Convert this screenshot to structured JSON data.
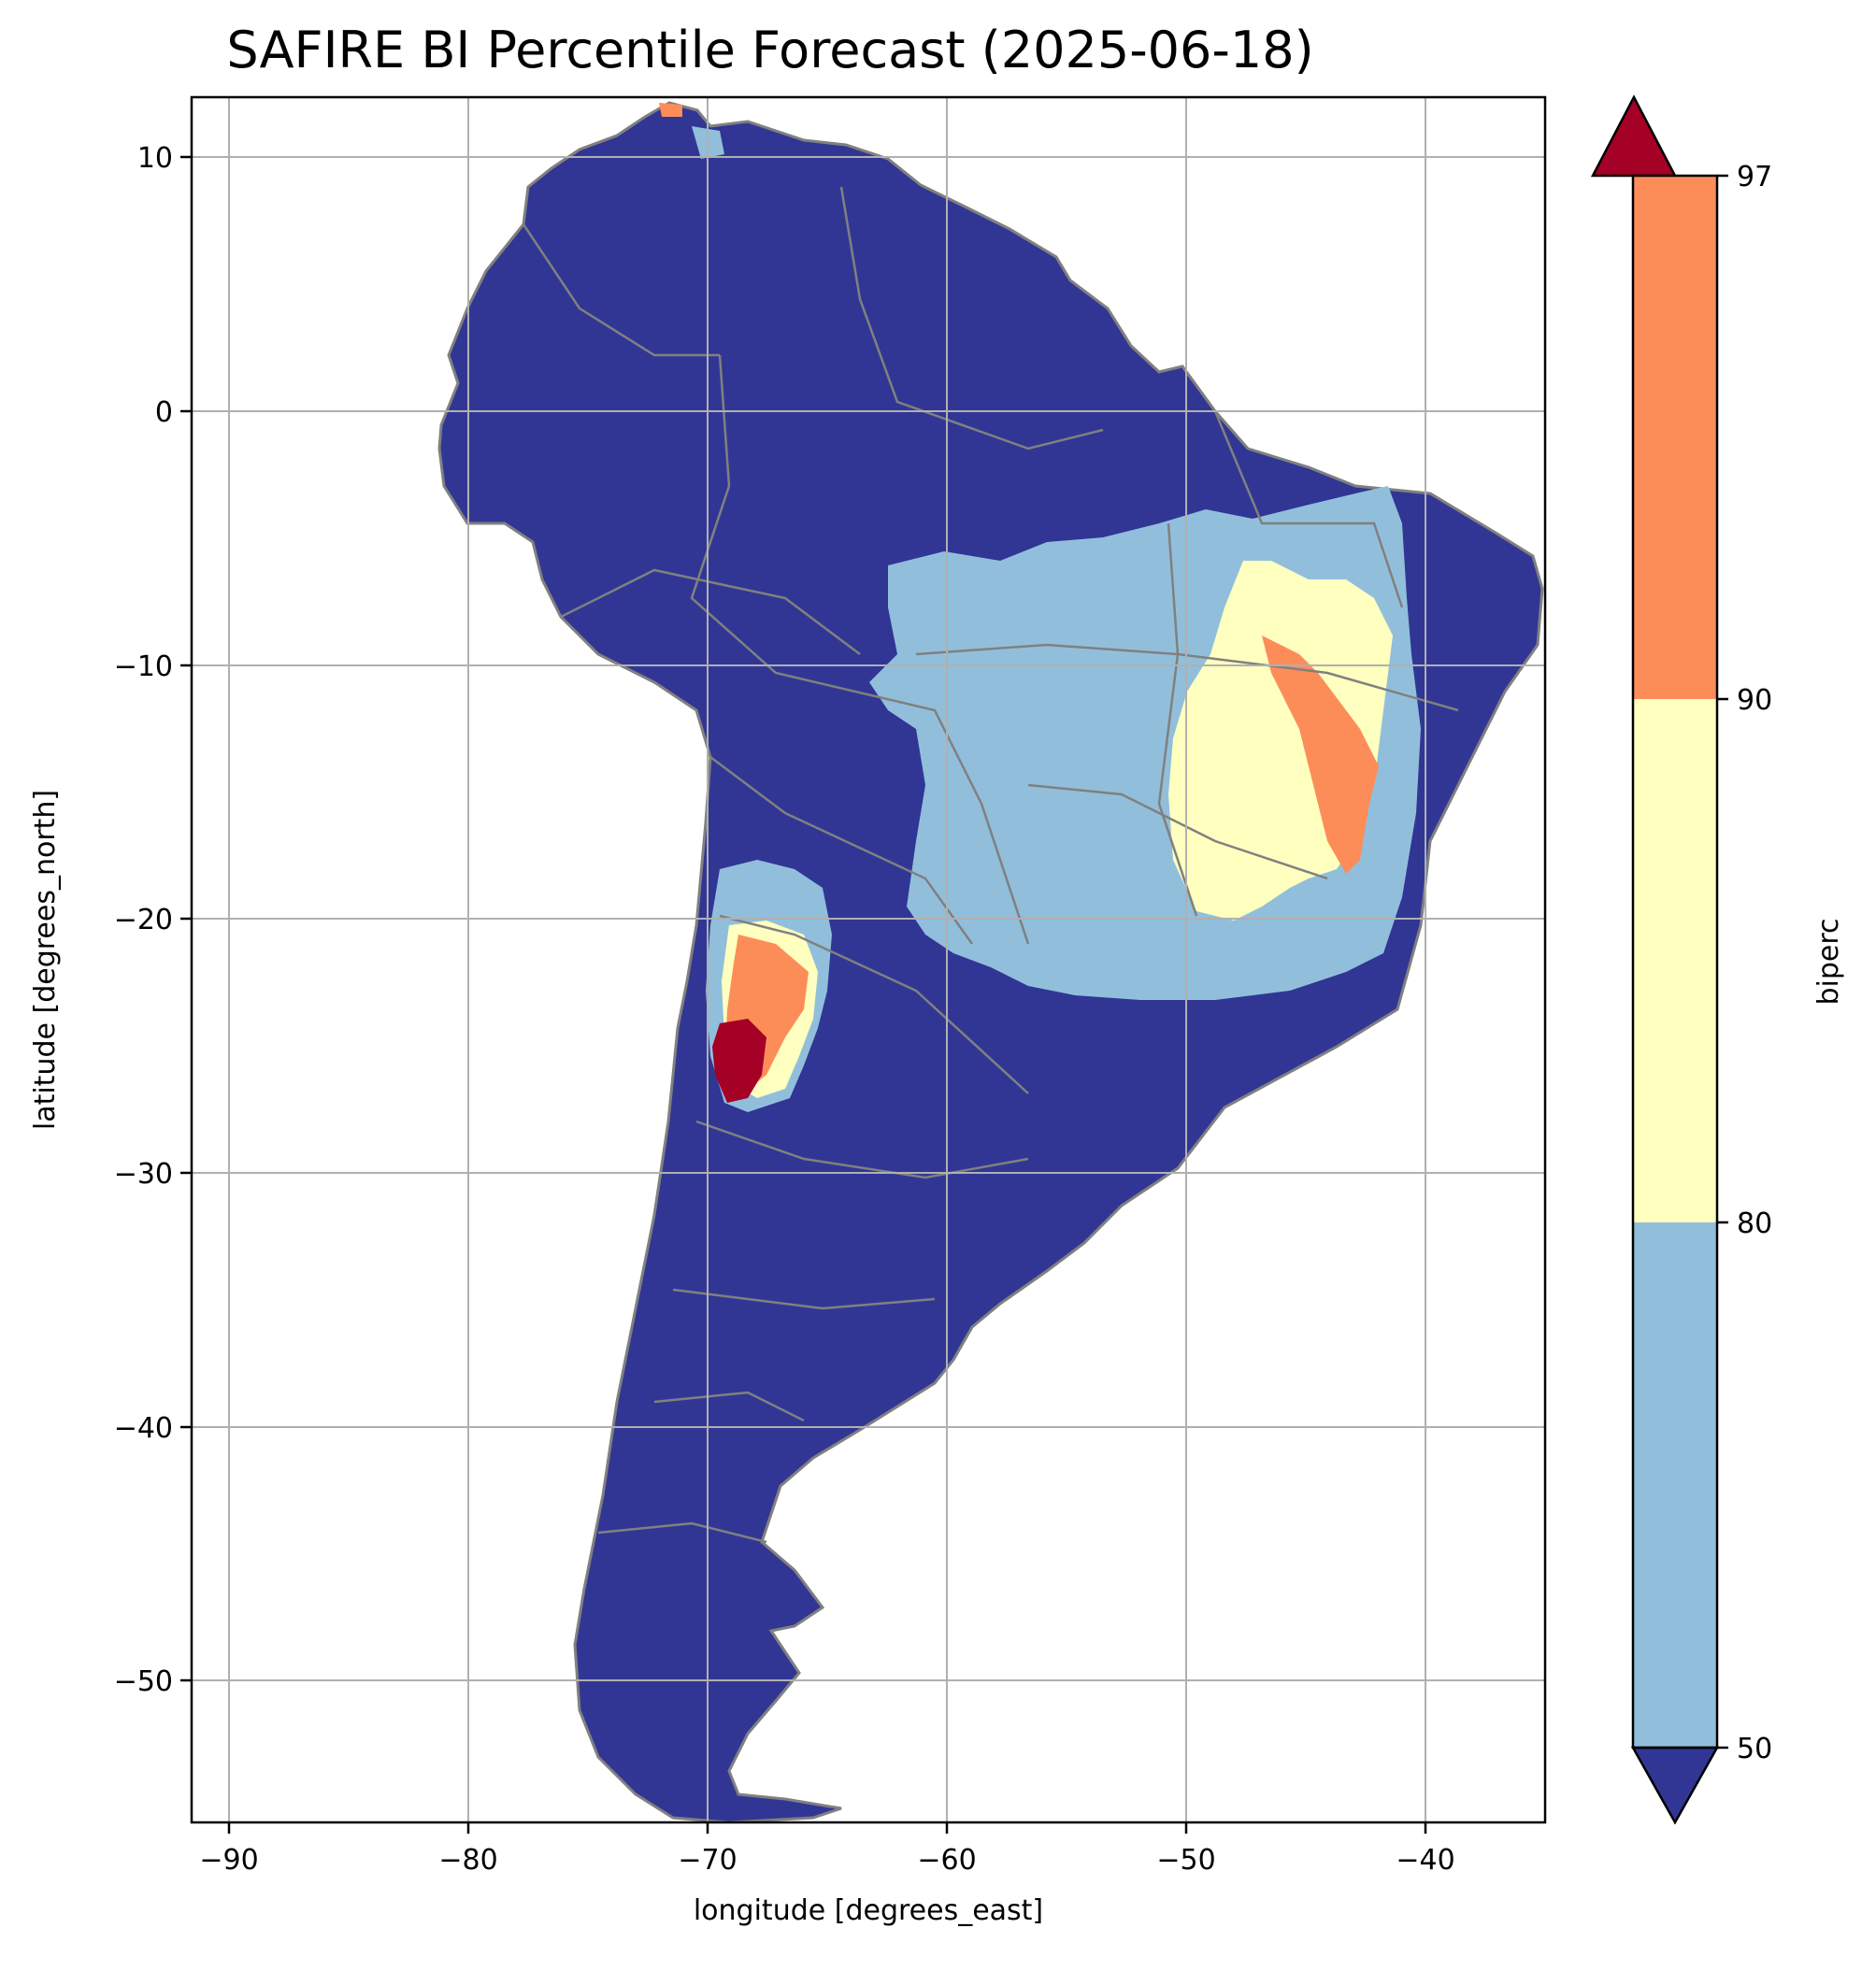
{
  "title": "SAFIRE BI Percentile Forecast (2025-06-18)",
  "chart_data": {
    "type": "heatmap",
    "title": "SAFIRE BI Percentile Forecast (2025-06-18)",
    "xlabel": "longitude [degrees_east]",
    "ylabel": "latitude [degrees_north]",
    "xlim": [
      -91.6,
      -35.0
    ],
    "ylim": [
      -55.9,
      12.4
    ],
    "xticks": [
      -90,
      -80,
      -70,
      -60,
      -50,
      -40
    ],
    "yticks": [
      10,
      0,
      -10,
      -20,
      -30,
      -40,
      -50
    ],
    "xtick_labels": [
      "−90",
      "−80",
      "−70",
      "−60",
      "−50",
      "−40"
    ],
    "ytick_labels": [
      "10",
      "0",
      "−10",
      "−20",
      "−30",
      "−40",
      "−50"
    ],
    "grid": true,
    "colorbar": {
      "label": "biperc",
      "extend": "both",
      "levels": [
        50,
        80,
        90,
        97
      ],
      "tick_labels": [
        "50",
        "80",
        "90",
        "97"
      ],
      "colors": {
        "below_50": "#313695",
        "50_80": "#91bfdb",
        "80_90": "#ffffbf",
        "90_97": "#fc8d59",
        "above_97": "#a50026"
      }
    },
    "regions": [
      {
        "category": "80_90",
        "lon": -48,
        "lat": -14
      },
      {
        "category": "90_97",
        "lon": -43.5,
        "lat": -14
      },
      {
        "category": "90_97",
        "lon": -68.5,
        "lat": -23
      },
      {
        "category": "above_97",
        "lon": -69.5,
        "lat": -26
      }
    ],
    "border_color": "#808080"
  }
}
